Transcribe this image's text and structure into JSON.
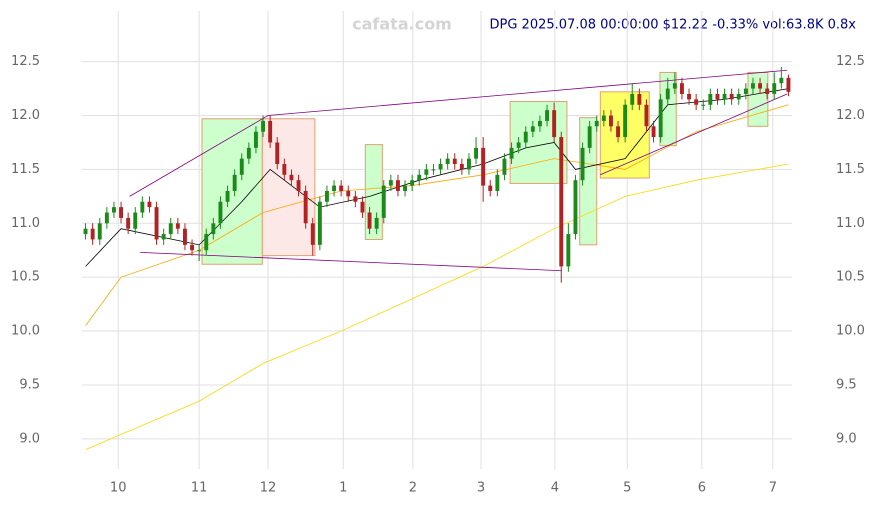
{
  "chart_data": {
    "type": "candlestick",
    "title": "DPG 2025.07.08 00:00:00 $12.22 -0.33% vol:63.8K 0.8x",
    "watermark": "cafata.com",
    "up_color": "#1a8a1a",
    "down_color": "#b22222",
    "open": [
      10.9,
      10.95,
      10.85,
      11.0,
      11.1,
      11.15,
      11.05,
      10.95,
      11.1,
      11.2,
      11.15,
      10.85,
      10.9,
      11.0,
      10.95,
      10.8,
      10.75,
      10.75,
      10.9,
      11.0,
      11.2,
      11.3,
      11.45,
      11.6,
      11.7,
      11.85,
      11.95,
      11.75,
      11.55,
      11.45,
      11.4,
      11.3,
      11.0,
      10.8,
      11.2,
      11.3,
      11.35,
      11.3,
      11.25,
      11.2,
      11.1,
      10.95,
      11.05,
      11.35,
      11.4,
      11.3,
      11.35,
      11.4,
      11.45,
      11.5,
      11.5,
      11.55,
      11.6,
      11.55,
      11.5,
      11.6,
      11.7,
      11.35,
      11.3,
      11.45,
      11.6,
      11.7,
      11.75,
      11.85,
      11.9,
      11.95,
      12.05,
      11.8,
      10.6,
      10.9,
      11.4,
      11.7,
      11.9,
      11.95,
      12.0,
      11.9,
      11.8,
      12.1,
      12.2,
      12.1,
      11.9,
      11.8,
      12.15,
      12.25,
      12.3,
      12.2,
      12.15,
      12.1,
      12.1,
      12.2,
      12.15,
      12.2,
      12.15,
      12.2,
      12.25,
      12.3,
      12.25,
      12.2,
      12.3,
      12.35
    ],
    "high": [
      11.0,
      11.0,
      11.05,
      11.15,
      11.2,
      11.2,
      11.1,
      11.15,
      11.25,
      11.25,
      11.2,
      10.95,
      11.05,
      11.05,
      11.0,
      10.85,
      10.8,
      10.95,
      11.05,
      11.25,
      11.35,
      11.5,
      11.65,
      11.75,
      11.9,
      12.0,
      12.0,
      11.8,
      11.6,
      11.5,
      11.45,
      11.35,
      11.05,
      11.25,
      11.35,
      11.4,
      11.4,
      11.35,
      11.3,
      11.25,
      11.15,
      11.1,
      11.4,
      11.45,
      11.45,
      11.4,
      11.45,
      11.5,
      11.55,
      11.55,
      11.6,
      11.65,
      11.65,
      11.6,
      11.65,
      11.8,
      11.8,
      11.4,
      11.5,
      11.65,
      11.75,
      11.8,
      11.9,
      11.95,
      12.0,
      12.1,
      12.12,
      11.85,
      11.0,
      11.45,
      11.75,
      11.95,
      12.0,
      12.05,
      12.05,
      11.95,
      12.15,
      12.3,
      12.25,
      12.15,
      11.95,
      12.2,
      12.35,
      12.4,
      12.35,
      12.25,
      12.2,
      12.15,
      12.25,
      12.25,
      12.25,
      12.25,
      12.25,
      12.3,
      12.35,
      12.35,
      12.3,
      12.4,
      12.45,
      12.38
    ],
    "low": [
      10.85,
      10.8,
      10.8,
      10.95,
      11.05,
      11.0,
      10.9,
      10.9,
      11.05,
      11.1,
      10.8,
      10.8,
      10.85,
      10.9,
      10.75,
      10.7,
      10.65,
      10.7,
      10.85,
      10.95,
      11.15,
      11.25,
      11.4,
      11.55,
      11.65,
      11.8,
      11.7,
      11.5,
      11.4,
      11.35,
      11.25,
      10.95,
      10.7,
      10.75,
      11.15,
      11.25,
      11.25,
      11.2,
      11.15,
      11.05,
      10.9,
      10.9,
      11.0,
      11.3,
      11.25,
      11.25,
      11.3,
      11.35,
      11.4,
      11.45,
      11.45,
      11.5,
      11.5,
      11.45,
      11.45,
      11.55,
      11.2,
      11.25,
      11.25,
      11.4,
      11.55,
      11.65,
      11.7,
      11.8,
      11.85,
      11.9,
      11.75,
      10.45,
      10.55,
      10.85,
      11.35,
      11.65,
      11.85,
      11.9,
      11.85,
      11.75,
      11.75,
      12.05,
      12.05,
      11.85,
      11.75,
      11.75,
      12.1,
      12.2,
      12.15,
      12.1,
      12.05,
      12.05,
      12.05,
      12.1,
      12.1,
      12.1,
      12.1,
      12.15,
      12.2,
      12.2,
      12.15,
      12.15,
      12.25,
      12.18
    ],
    "close": [
      10.95,
      10.85,
      11.0,
      11.1,
      11.15,
      11.05,
      10.95,
      11.1,
      11.2,
      11.15,
      10.85,
      10.9,
      11.0,
      10.95,
      10.8,
      10.75,
      10.75,
      10.9,
      11.0,
      11.2,
      11.3,
      11.45,
      11.6,
      11.7,
      11.85,
      11.95,
      11.75,
      11.55,
      11.45,
      11.4,
      11.3,
      11.0,
      10.8,
      11.2,
      11.3,
      11.35,
      11.3,
      11.25,
      11.2,
      11.1,
      10.95,
      11.05,
      11.35,
      11.4,
      11.3,
      11.35,
      11.4,
      11.45,
      11.5,
      11.5,
      11.55,
      11.6,
      11.55,
      11.5,
      11.6,
      11.7,
      11.35,
      11.3,
      11.45,
      11.6,
      11.7,
      11.75,
      11.85,
      11.9,
      11.95,
      12.05,
      11.8,
      10.6,
      10.9,
      11.4,
      11.7,
      11.9,
      11.95,
      12.0,
      11.9,
      11.8,
      12.1,
      12.2,
      12.1,
      11.9,
      11.8,
      12.15,
      12.25,
      12.3,
      12.2,
      12.15,
      12.1,
      12.1,
      12.2,
      12.15,
      12.2,
      12.15,
      12.2,
      12.25,
      12.3,
      12.25,
      12.2,
      12.3,
      12.35,
      12.22
    ],
    "boxes": [
      {
        "x": [
          16.4,
          24.9
        ],
        "range": [
          10.62,
          11.97
        ],
        "color": "#ccffcc"
      },
      {
        "x": [
          24.9,
          32.3
        ],
        "range": [
          10.7,
          11.97
        ],
        "color": "#fde8e8"
      },
      {
        "x": [
          39.4,
          41.8
        ],
        "range": [
          10.85,
          11.73
        ],
        "color": "#ccffcc"
      },
      {
        "x": [
          59.8,
          67.8
        ],
        "range": [
          11.37,
          12.13
        ],
        "color": "#ccffcc"
      },
      {
        "x": [
          69.6,
          72.0
        ],
        "range": [
          10.8,
          11.98
        ],
        "color": "#ccffcc"
      },
      {
        "x": [
          72.5,
          79.4
        ],
        "range": [
          11.42,
          12.22
        ],
        "color": "#ffff66"
      },
      {
        "x": [
          80.9,
          83.2
        ],
        "range": [
          11.72,
          12.4
        ],
        "color": "#ccffcc"
      },
      {
        "x": [
          93.3,
          96.1
        ],
        "range": [
          11.9,
          12.4
        ],
        "color": "#ccffcc"
      }
    ],
    "lines": [
      {
        "color": "#ffd700",
        "x": [
          0,
          16,
          25,
          36,
          46,
          56,
          66,
          76,
          86,
          99
        ],
        "values": [
          8.9,
          9.35,
          9.7,
          10.0,
          10.3,
          10.6,
          10.95,
          11.25,
          11.4,
          11.55
        ]
      },
      {
        "color": "#ffa500",
        "x": [
          0,
          5,
          16,
          25,
          36,
          46,
          56,
          66,
          71,
          76,
          86,
          99
        ],
        "values": [
          10.05,
          10.5,
          10.75,
          11.1,
          11.3,
          11.35,
          11.45,
          11.6,
          11.55,
          11.5,
          11.85,
          12.1
        ]
      },
      {
        "color": "#000000",
        "x": [
          0,
          5,
          16,
          22,
          26,
          33,
          40,
          47,
          56,
          62,
          66,
          69,
          76,
          82,
          90,
          99
        ],
        "values": [
          10.6,
          10.95,
          10.8,
          11.2,
          11.5,
          11.15,
          11.25,
          11.4,
          11.55,
          11.7,
          11.75,
          11.5,
          11.6,
          12.1,
          12.15,
          12.25
        ]
      }
    ],
    "trendlines": [
      {
        "color": "#800080",
        "x": [
          6.2,
          25.7,
          98.8
        ],
        "values": [
          11.25,
          12.0,
          12.42
        ]
      },
      {
        "color": "#800080",
        "x": [
          7.7,
          67.1
        ],
        "values": [
          10.73,
          10.56
        ]
      },
      {
        "color": "#800080",
        "x": [
          72.5,
          98.8
        ],
        "values": [
          11.45,
          12.2
        ]
      }
    ],
    "xlim": [
      -0.5,
      99.5
    ],
    "xticks": [
      {
        "value": 4.6,
        "label": "10"
      },
      {
        "value": 16.0,
        "label": "11"
      },
      {
        "value": 25.7,
        "label": "12"
      },
      {
        "value": 36.3,
        "label": "1"
      },
      {
        "value": 46.1,
        "label": "2"
      },
      {
        "value": 55.7,
        "label": "3"
      },
      {
        "value": 66.1,
        "label": "4"
      },
      {
        "value": 76.3,
        "label": "5"
      },
      {
        "value": 86.8,
        "label": "6"
      },
      {
        "value": 96.8,
        "label": "7"
      }
    ],
    "ylim": [
      8.72,
      12.97
    ],
    "yticks": [
      {
        "value": 9,
        "label": "9.0"
      },
      9.5,
      {
        "value": 10,
        "label": "10.0"
      },
      10.5,
      {
        "value": 11,
        "label": "11.0"
      },
      11.5,
      {
        "value": 12,
        "label": "12.0"
      },
      12.5
    ],
    "grid": true
  }
}
